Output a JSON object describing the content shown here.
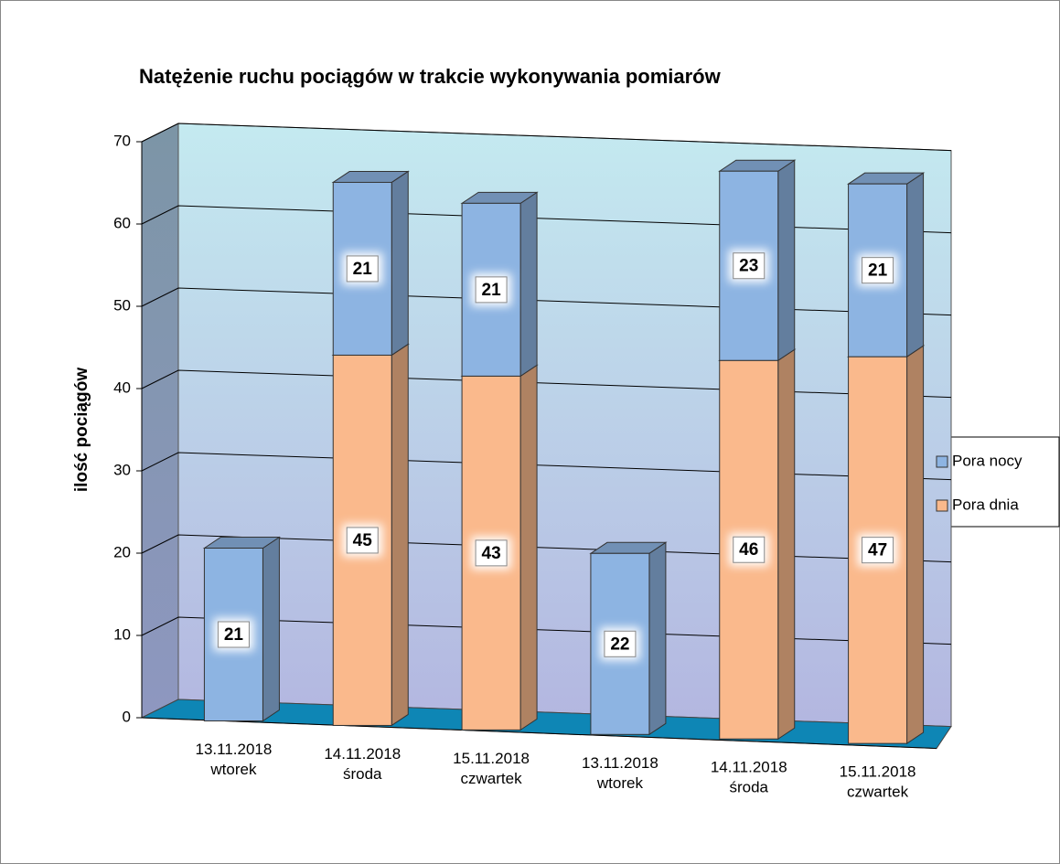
{
  "chart_data": {
    "type": "bar3d_stacked",
    "title": "Natężenie ruchu pociągów w trakcie wykonywania pomiarów",
    "y_label": "ilość pociągów",
    "categories": [
      [
        "13.11.2018",
        "wtorek"
      ],
      [
        "14.11.2018",
        "środa"
      ],
      [
        "15.11.2018",
        "czwartek"
      ],
      [
        "13.11.2018",
        "wtorek"
      ],
      [
        "14.11.2018",
        "środa"
      ],
      [
        "15.11.2018",
        "czwartek"
      ]
    ],
    "series": [
      {
        "name": "Pora dnia",
        "color": "#fab98c",
        "values": [
          null,
          45,
          43,
          null,
          46,
          47
        ]
      },
      {
        "name": "Pora nocy",
        "color": "#8db4e2",
        "values": [
          21,
          21,
          21,
          22,
          23,
          21
        ]
      }
    ],
    "ylim": [
      0,
      70
    ],
    "yticks": [
      0,
      10,
      20,
      30,
      40,
      50,
      60,
      70
    ],
    "grid": true,
    "legend": "right"
  }
}
